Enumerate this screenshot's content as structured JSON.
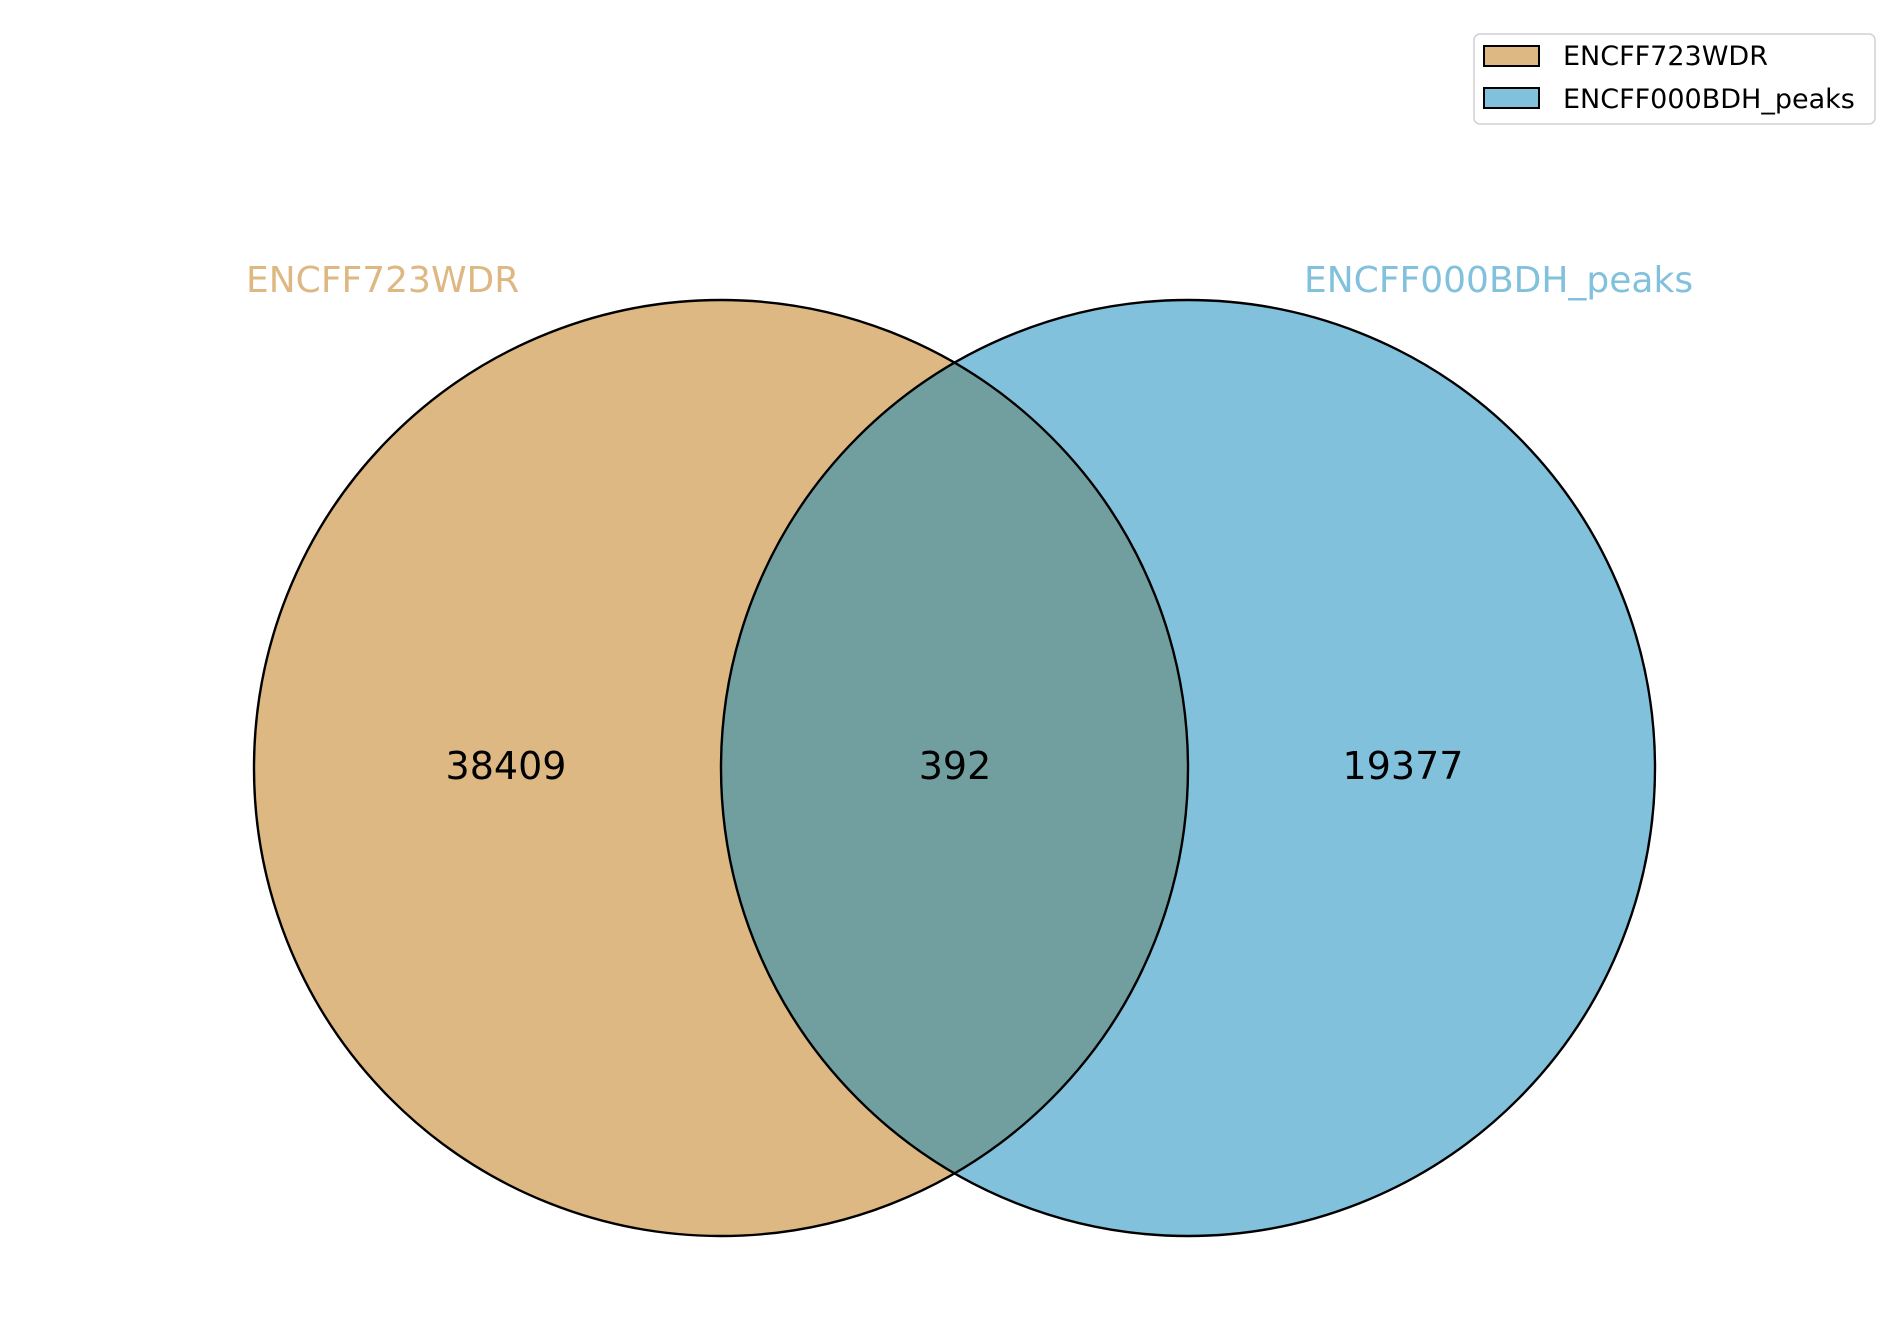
{
  "chart_data": {
    "type": "venn",
    "sets": [
      {
        "name": "ENCFF723WDR",
        "only": 38409,
        "color": "#ddb882"
      },
      {
        "name": "ENCFF000BDH_peaks",
        "only": 19377,
        "color": "#82c1dc"
      }
    ],
    "intersection": 392,
    "intersection_color": "#719e9f",
    "legend": {
      "position": "top-right",
      "entries": [
        "ENCFF723WDR",
        "ENCFF000BDH_peaks"
      ]
    }
  }
}
